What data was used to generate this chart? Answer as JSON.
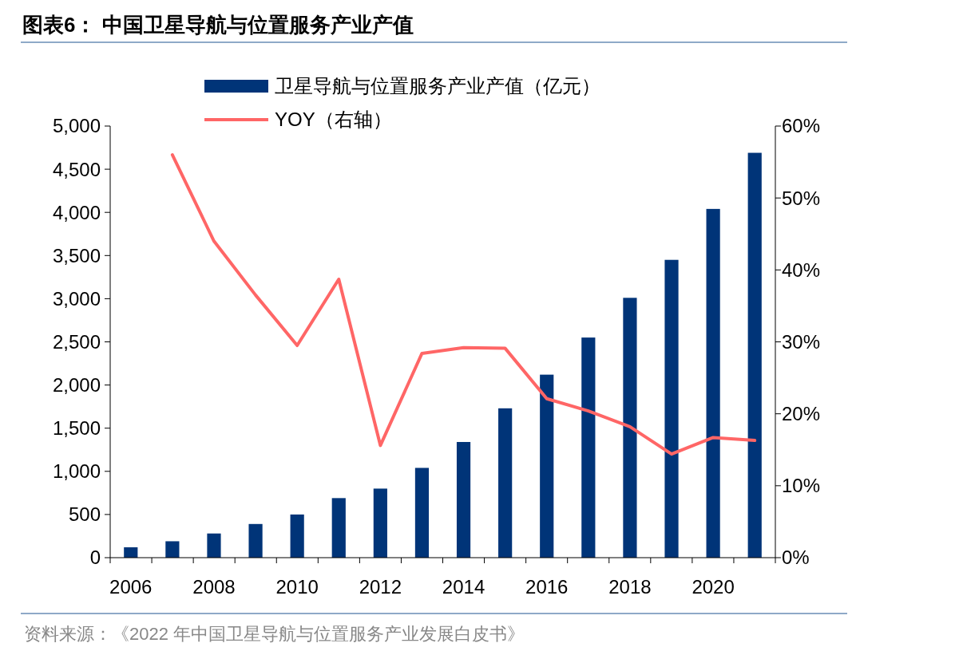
{
  "chart_data": {
    "type": "bar",
    "title": "图表6：  中国卫星导航与位置服务产业产值",
    "categories": [
      "2006",
      null,
      "2008",
      null,
      "2010",
      null,
      "2012",
      null,
      "2014",
      null,
      "2016",
      null,
      "2018",
      null,
      "2020",
      null
    ],
    "series": [
      {
        "name": "卫星导航与位置服务产业产值（亿元）",
        "color": "#003478",
        "values": [
          120,
          190,
          280,
          390,
          500,
          690,
          800,
          1040,
          1340,
          1730,
          2120,
          2550,
          3010,
          3450,
          4040,
          4690
        ]
      },
      {
        "name": "YOY（右轴）",
        "type": "line",
        "axis": "y2",
        "color": "#ff6666",
        "values": [
          null,
          56.0,
          44.0,
          36.5,
          29.5,
          38.7,
          15.6,
          28.4,
          29.2,
          29.1,
          22.1,
          20.4,
          18.2,
          14.4,
          16.7,
          16.3
        ]
      }
    ],
    "ylim": [
      0,
      5000
    ],
    "yticks": [
      0,
      500,
      {
        "value": 1000,
        "label": "1,000"
      },
      {
        "value": 1500,
        "label": "1,500"
      },
      {
        "value": 2000,
        "label": "2,000"
      },
      {
        "value": 2500,
        "label": "2,500"
      },
      {
        "value": 3000,
        "label": "3,000"
      },
      {
        "value": 3500,
        "label": "3,500"
      },
      {
        "value": 4000,
        "label": "4,000"
      },
      {
        "value": 4500,
        "label": "4,500"
      },
      {
        "value": 5000,
        "label": "5,000"
      }
    ],
    "y2lim": [
      0,
      60
    ],
    "y2ticks": [
      {
        "value": 0,
        "label": "0%"
      },
      {
        "value": 10,
        "label": "10%"
      },
      {
        "value": 20,
        "label": "20%"
      },
      {
        "value": 30,
        "label": "30%"
      },
      {
        "value": 40,
        "label": "40%"
      },
      {
        "value": 50,
        "label": "50%"
      },
      {
        "value": 60,
        "label": "60%"
      }
    ],
    "legend": "top",
    "grid": false,
    "marker": "none",
    "annotations": [
      "资料来源：《2022 年中国卫星导航与位置服务产业发展白皮书》"
    ]
  }
}
